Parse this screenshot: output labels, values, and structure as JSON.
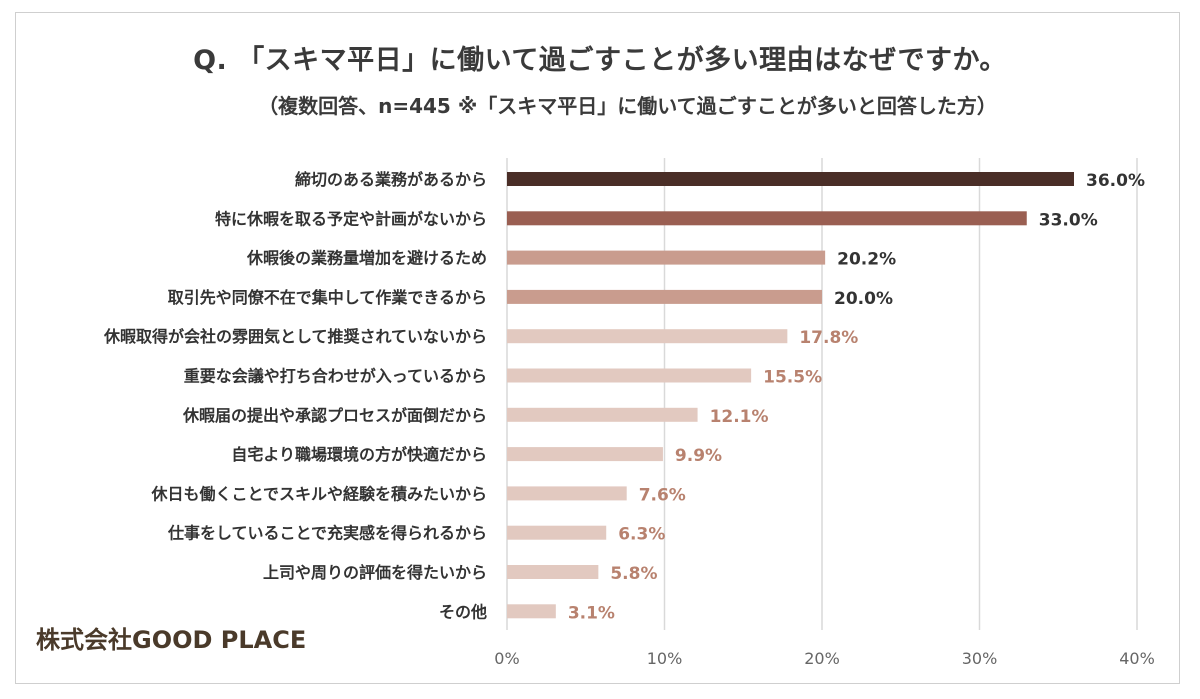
{
  "title": "Q. 「スキマ平日」に働いて過ごすことが多い理由はなぜですか。",
  "subtitle": "（複数回答、n=445 ※「スキマ平日」に働いて過ごすことが多いと回答した方）",
  "company": "株式会社GOOD PLACE",
  "chart_data": {
    "type": "bar",
    "orientation": "horizontal",
    "title": "Q. 「スキマ平日」に働いて過ごすことが多い理由はなぜですか。",
    "subtitle": "（複数回答、n=445 ※「スキマ平日」に働いて過ごすことが多いと回答した方）",
    "xlabel": "",
    "ylabel": "",
    "xlim": [
      0,
      40
    ],
    "x_ticks": [
      "0%",
      "10%",
      "20%",
      "30%",
      "40%"
    ],
    "grid": "vertical",
    "categories": [
      "締切のある業務があるから",
      "特に休暇を取る予定や計画がないから",
      "休暇後の業務量増加を避けるため",
      "取引先や同僚不在で集中して作業できるから",
      "休暇取得が会社の雰囲気として推奨されていないから",
      "重要な会議や打ち合わせが入っているから",
      "休暇届の提出や承認プロセスが面倒だから",
      "自宅より職場環境の方が快適だから",
      "休日も働くことでスキルや経験を積みたいから",
      "仕事をしていることで充実感を得られるから",
      "上司や周りの評価を得たいから",
      "その他"
    ],
    "values": [
      36.0,
      33.0,
      20.2,
      20.0,
      17.8,
      15.5,
      12.1,
      9.9,
      7.6,
      6.3,
      5.8,
      3.1
    ],
    "value_labels": [
      "36.0%",
      "33.0%",
      "20.2%",
      "20.0%",
      "17.8%",
      "15.5%",
      "12.1%",
      "9.9%",
      "7.6%",
      "6.3%",
      "5.8%",
      "3.1%"
    ],
    "bar_colors": [
      "#4a2e27",
      "#9a5f52",
      "#c99c8e",
      "#c99c8e",
      "#e2c9c0",
      "#e2c9c0",
      "#e2c9c0",
      "#e2c9c0",
      "#e2c9c0",
      "#e2c9c0",
      "#e2c9c0",
      "#e2c9c0"
    ],
    "label_colors": [
      "#333333",
      "#333333",
      "#333333",
      "#333333",
      "#b8826f",
      "#b8826f",
      "#b8826f",
      "#b8826f",
      "#b8826f",
      "#b8826f",
      "#b8826f",
      "#b8826f"
    ]
  }
}
